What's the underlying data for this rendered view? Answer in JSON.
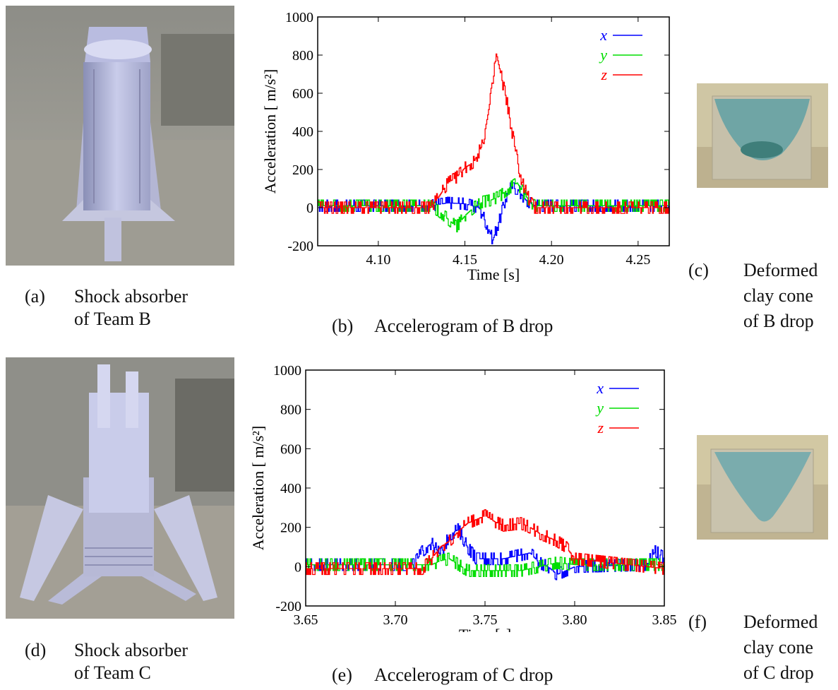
{
  "figure": {
    "panels": [
      {
        "tag": "(a)",
        "line1": "Shock absorber",
        "line2": "of Team B"
      },
      {
        "tag": "(b)",
        "line1": "Accelerogram of B drop"
      },
      {
        "tag": "(c)",
        "line1": "Deformed",
        "line2": "clay cone",
        "line3": "of B drop"
      },
      {
        "tag": "(d)",
        "line1": "Shock absorber",
        "line2": "of Team C"
      },
      {
        "tag": "(e)",
        "line1": "Accelerogram of C drop"
      },
      {
        "tag": "(f)",
        "line1": "Deformed",
        "line2": "clay cone",
        "line3": "of C drop"
      }
    ]
  },
  "colors": {
    "x": "#0000ff",
    "y": "#00dd00",
    "z": "#ff0000"
  },
  "chart_data": [
    {
      "type": "line",
      "title": "",
      "xlabel": "Time  [s]",
      "ylabel": "Acceleration  [ m/s²]",
      "xlim": [
        4.065,
        4.268
      ],
      "ylim": [
        -200,
        1000
      ],
      "xticks": [
        "4.10",
        "4.15",
        "4.20",
        "4.25"
      ],
      "yticks": [
        "-200",
        "0",
        "200",
        "400",
        "600",
        "800",
        "1000"
      ],
      "legend_position": "top-right",
      "series": [
        {
          "name": "x",
          "x": [
            4.065,
            4.13,
            4.14,
            4.15,
            4.158,
            4.162,
            4.166,
            4.17,
            4.175,
            4.18,
            4.185,
            4.19,
            4.268
          ],
          "values": [
            10,
            10,
            25,
            20,
            0,
            -80,
            -170,
            -60,
            100,
            100,
            40,
            10,
            10
          ]
        },
        {
          "name": "y",
          "x": [
            4.065,
            4.13,
            4.135,
            4.14,
            4.145,
            4.15,
            4.155,
            4.16,
            4.165,
            4.17,
            4.175,
            4.18,
            4.185,
            4.19,
            4.268
          ],
          "values": [
            10,
            10,
            -20,
            -60,
            -100,
            -40,
            0,
            30,
            40,
            60,
            100,
            130,
            60,
            10,
            10
          ]
        },
        {
          "name": "z",
          "x": [
            4.065,
            4.13,
            4.135,
            4.14,
            4.145,
            4.15,
            4.155,
            4.16,
            4.163,
            4.166,
            4.168,
            4.171,
            4.174,
            4.177,
            4.18,
            4.183,
            4.187,
            4.19,
            4.268
          ],
          "values": [
            0,
            0,
            60,
            130,
            160,
            210,
            240,
            330,
            480,
            650,
            810,
            680,
            560,
            400,
            250,
            130,
            40,
            0,
            0
          ]
        }
      ]
    },
    {
      "type": "line",
      "title": "",
      "xlabel": "Time  [s]",
      "ylabel": "Acceleration  [ m/s²]",
      "xlim": [
        3.65,
        3.85
      ],
      "ylim": [
        -200,
        1000
      ],
      "xticks": [
        "3.65",
        "3.70",
        "3.75",
        "3.80",
        "3.85"
      ],
      "yticks": [
        "-200",
        "0",
        "200",
        "400",
        "600",
        "800",
        "1000"
      ],
      "legend_position": "top-right",
      "series": [
        {
          "name": "x",
          "x": [
            3.65,
            3.71,
            3.715,
            3.72,
            3.725,
            3.73,
            3.735,
            3.74,
            3.745,
            3.76,
            3.77,
            3.775,
            3.78,
            3.785,
            3.79,
            3.8,
            3.84,
            3.845,
            3.85
          ],
          "values": [
            10,
            10,
            80,
            120,
            60,
            160,
            190,
            100,
            40,
            40,
            60,
            70,
            20,
            0,
            -40,
            0,
            10,
            80,
            40
          ]
        },
        {
          "name": "y",
          "x": [
            3.65,
            3.72,
            3.725,
            3.73,
            3.735,
            3.74,
            3.745,
            3.75,
            3.77,
            3.78,
            3.79,
            3.8,
            3.85
          ],
          "values": [
            10,
            10,
            30,
            40,
            10,
            -20,
            -20,
            -20,
            -20,
            0,
            20,
            10,
            10
          ]
        },
        {
          "name": "z",
          "x": [
            3.65,
            3.715,
            3.72,
            3.725,
            3.73,
            3.735,
            3.74,
            3.745,
            3.75,
            3.755,
            3.76,
            3.77,
            3.775,
            3.78,
            3.785,
            3.79,
            3.795,
            3.8,
            3.85
          ],
          "values": [
            -10,
            -10,
            40,
            100,
            130,
            180,
            220,
            240,
            260,
            230,
            210,
            220,
            200,
            170,
            150,
            130,
            100,
            40,
            -10
          ]
        }
      ]
    }
  ]
}
